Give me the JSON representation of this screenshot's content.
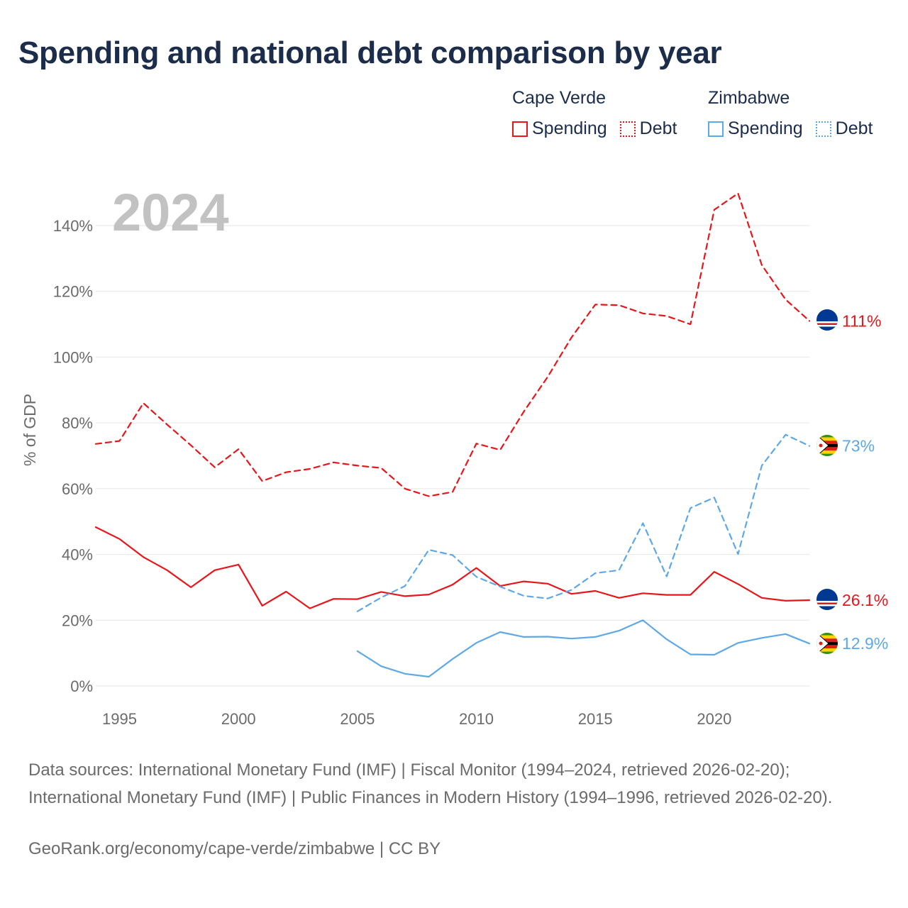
{
  "title": "Spending and national debt comparison by year",
  "legend": {
    "countries": [
      {
        "name": "Cape Verde",
        "spending_label": "Spending",
        "debt_label": "Debt",
        "color": "#e8161b"
      },
      {
        "name": "Zimbabwe",
        "spending_label": "Spending",
        "debt_label": "Debt",
        "color": "#5ea8e5"
      }
    ]
  },
  "year_label": "2024",
  "sources": "Data sources: International Monetary Fund (IMF) | Fiscal Monitor (1994–2024, retrieved 2026-02-20); International Monetary Fund (IMF) | Public Finances in Modern History (1994–1996, retrieved 2026-02-20).",
  "credit": "GeoRank.org/economy/cape-verde/zimbabwe | CC BY",
  "chart_data": {
    "type": "line",
    "title": "Spending and national debt comparison by year",
    "xlabel": "",
    "ylabel": "% of GDP",
    "xlim": [
      1994,
      2024
    ],
    "ylim": [
      0,
      150
    ],
    "x_ticks": [
      1995,
      2000,
      2005,
      2010,
      2015,
      2020
    ],
    "x_tick_labels": [
      "1995",
      "2000",
      "2005",
      "2010",
      "2015",
      "2020"
    ],
    "y_ticks": [
      0,
      20,
      40,
      60,
      80,
      100,
      120,
      140
    ],
    "y_tick_labels": [
      "0%",
      "20%",
      "40%",
      "60%",
      "80%",
      "100%",
      "120%",
      "140%"
    ],
    "grid": "horizontal",
    "series": [
      {
        "name": "Cape Verde Debt",
        "country": "Cape Verde",
        "measure": "Debt",
        "style": "dashed",
        "color": "#e8161b",
        "end_label": "111%",
        "x": [
          1994,
          1995,
          1996,
          1997,
          1998,
          1999,
          2000,
          2001,
          2002,
          2003,
          2004,
          2005,
          2006,
          2007,
          2008,
          2009,
          2010,
          2011,
          2012,
          2013,
          2014,
          2015,
          2016,
          2017,
          2018,
          2019,
          2020,
          2021,
          2022,
          2023,
          2024
        ],
        "values": [
          73.6,
          74.5,
          86,
          79.5,
          73.2,
          66.5,
          72,
          62.3,
          65,
          66,
          68,
          67,
          66.3,
          60,
          57.7,
          59,
          73.7,
          71.8,
          83.5,
          94,
          106,
          116,
          115.8,
          113.3,
          112.5,
          110,
          144.8,
          149.8,
          128,
          117.5,
          111
        ]
      },
      {
        "name": "Cape Verde Spending",
        "country": "Cape Verde",
        "measure": "Spending",
        "style": "solid",
        "color": "#e8161b",
        "end_label": "26.1%",
        "x": [
          1994,
          1995,
          1996,
          1997,
          1998,
          1999,
          2000,
          2001,
          2002,
          2003,
          2004,
          2005,
          2006,
          2007,
          2008,
          2009,
          2010,
          2011,
          2012,
          2013,
          2014,
          2015,
          2016,
          2017,
          2018,
          2019,
          2020,
          2021,
          2022,
          2023,
          2024
        ],
        "values": [
          48.3,
          44.7,
          39.2,
          35.2,
          30,
          35.2,
          36.9,
          24.4,
          28.7,
          23.6,
          26.5,
          26.4,
          28.6,
          27.3,
          27.8,
          30.8,
          35.9,
          30.4,
          31.8,
          31.1,
          28,
          28.9,
          26.8,
          28.2,
          27.7,
          27.7,
          34.7,
          31,
          26.8,
          25.9,
          26.1
        ]
      },
      {
        "name": "Zimbabwe Debt",
        "country": "Zimbabwe",
        "measure": "Debt",
        "style": "dashed",
        "color": "#5ea8e5",
        "end_label": "73%",
        "x": [
          2005,
          2006,
          2007,
          2008,
          2009,
          2010,
          2011,
          2012,
          2013,
          2014,
          2015,
          2016,
          2017,
          2018,
          2019,
          2020,
          2021,
          2022,
          2023,
          2024
        ],
        "values": [
          22.7,
          26.9,
          30.4,
          41.4,
          39.8,
          33.2,
          30.2,
          27.4,
          26.6,
          29.2,
          34.3,
          35.2,
          49.5,
          33.3,
          54.1,
          57.3,
          40.1,
          67,
          76.4,
          73
        ]
      },
      {
        "name": "Zimbabwe Spending",
        "country": "Zimbabwe",
        "measure": "Spending",
        "style": "solid",
        "color": "#5ea8e5",
        "end_label": "12.9%",
        "x": [
          2005,
          2006,
          2007,
          2008,
          2009,
          2010,
          2011,
          2012,
          2013,
          2014,
          2015,
          2016,
          2017,
          2018,
          2019,
          2020,
          2021,
          2022,
          2023,
          2024
        ],
        "values": [
          10.6,
          6,
          3.7,
          2.8,
          8.2,
          13.1,
          16.4,
          14.9,
          15,
          14.4,
          14.9,
          16.8,
          20,
          14.2,
          9.6,
          9.5,
          13.1,
          14.6,
          15.8,
          12.9
        ]
      }
    ]
  }
}
